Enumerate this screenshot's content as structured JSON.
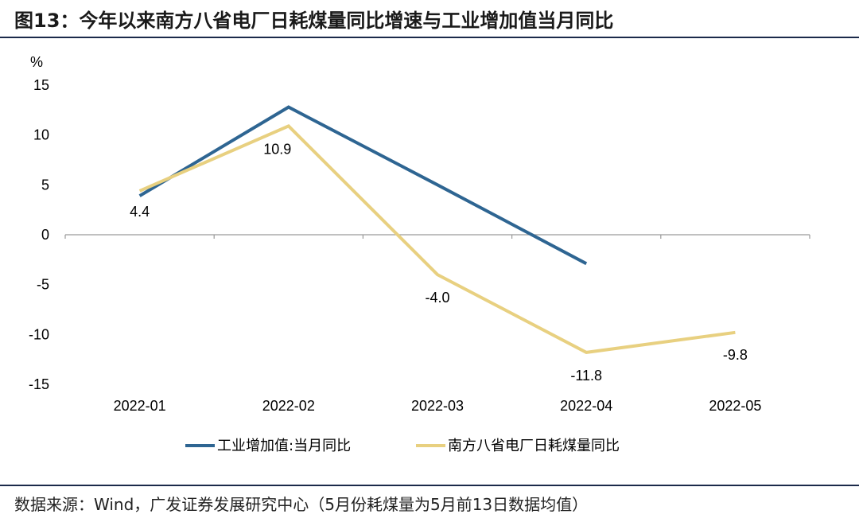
{
  "title": "图13：今年以来南方八省电厂日耗煤量同比增速与工业增加值当月同比",
  "source": "数据来源：Wind，广发证券发展研究中心（5月份耗煤量为5月前13日数据均值）",
  "colors": {
    "series1": "#2e6592",
    "series2": "#e8d080",
    "axis": "#9a9a9a",
    "rule": "#1b2a4a"
  },
  "chart_data": {
    "type": "line",
    "title": "今年以来南方八省电厂日耗煤量同比增速与工业增加值当月同比",
    "ylabel": "%",
    "xlabel": "",
    "ylim": [
      -15,
      15
    ],
    "yticks": [
      15,
      10,
      5,
      0,
      -5,
      -10,
      -15
    ],
    "categories": [
      "2022-01",
      "2022-02",
      "2022-03",
      "2022-04",
      "2022-05"
    ],
    "series": [
      {
        "name": "工业增加值:当月同比",
        "values": [
          3.9,
          12.8,
          5.0,
          -2.9,
          null
        ]
      },
      {
        "name": "南方八省电厂日耗煤量同比",
        "values": [
          4.4,
          10.9,
          -4.0,
          -11.8,
          -9.8
        ],
        "labels": [
          "4.4",
          "10.9",
          "-4.0",
          "-11.8",
          "-9.8"
        ]
      }
    ],
    "legend_position": "bottom"
  }
}
